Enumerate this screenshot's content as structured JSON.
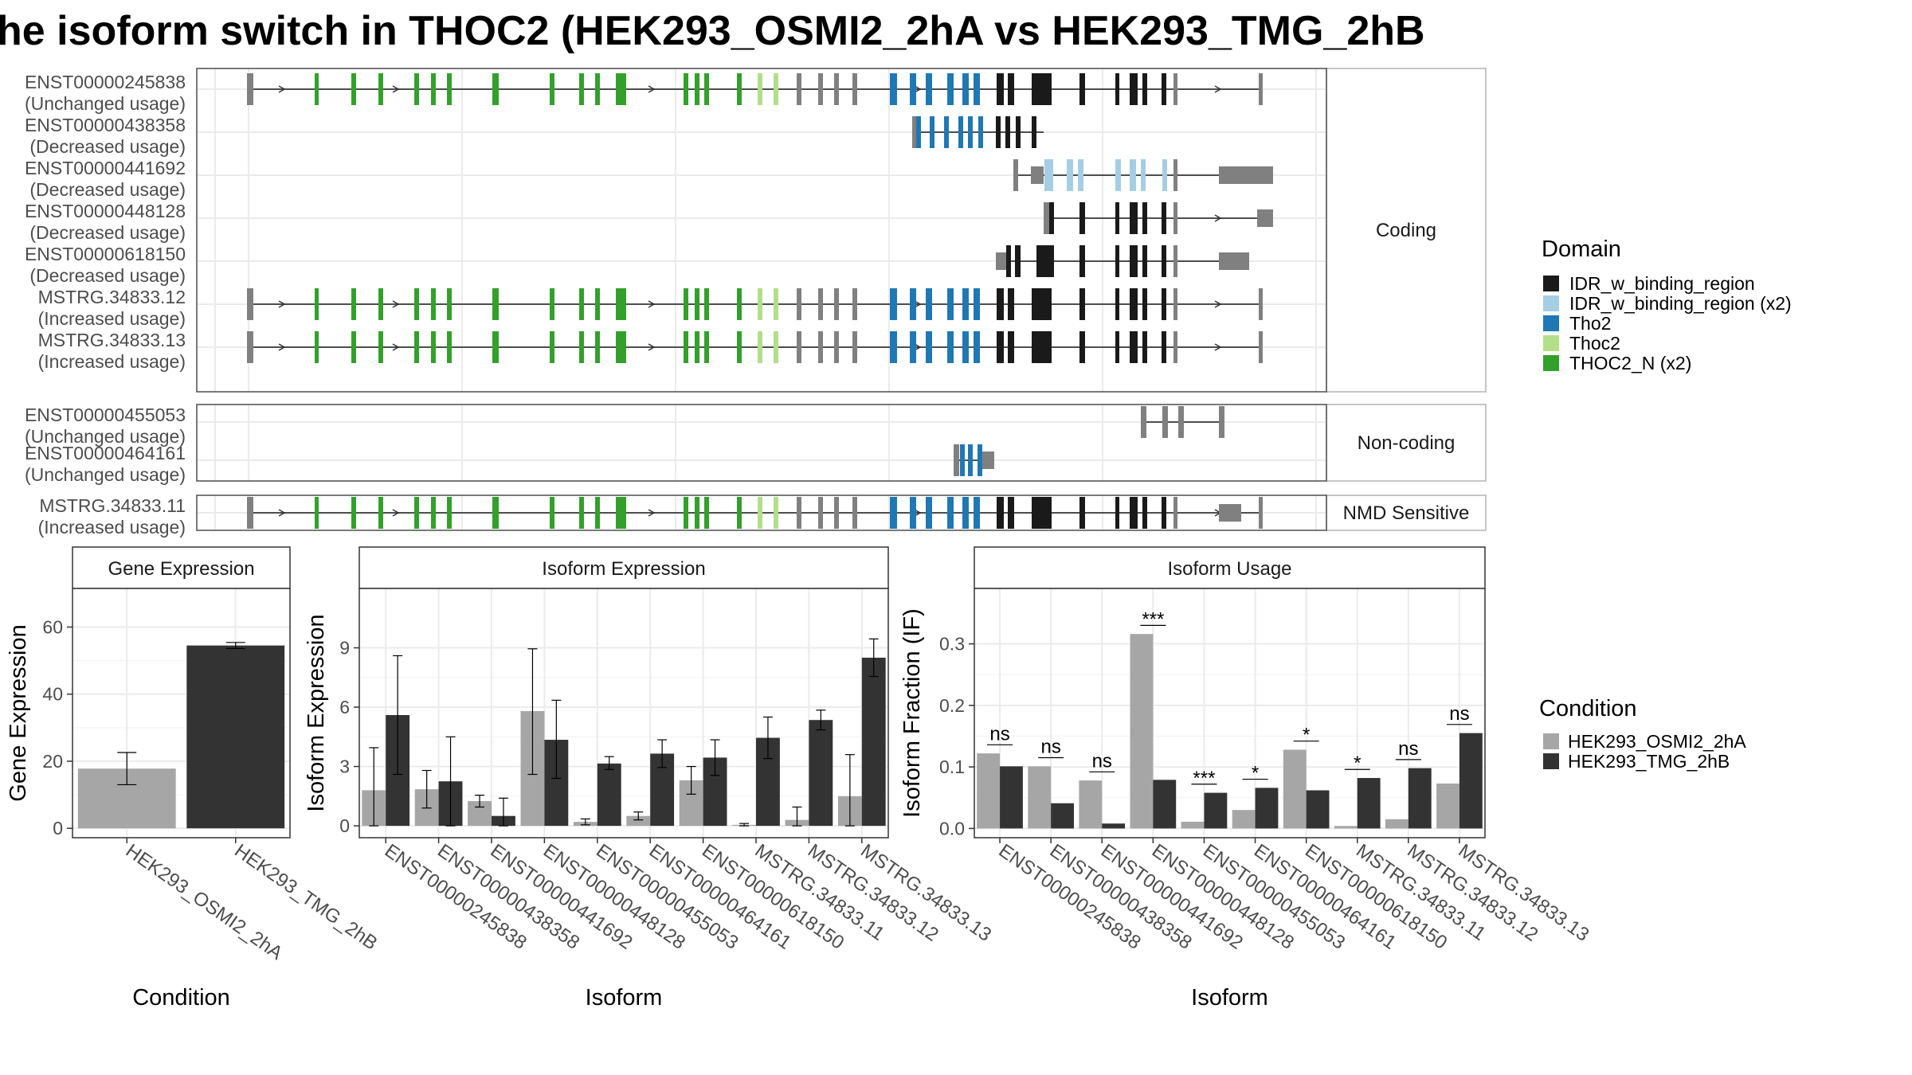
{
  "title": "he isoform switch in THOC2 (HEK293_OSMI2_2hA vs HEK293_TMG_2hB",
  "colors": {
    "IDR_w_binding_region": "#1a1a1a",
    "IDR_w_binding_region (x2)": "#a6cee3",
    "Tho2": "#1f78b4",
    "Thoc2": "#b2df8a",
    "THOC2_N (x2)": "#33a02c",
    "none": "#808080",
    "cond_a": "#a6a6a6",
    "cond_b": "#333333"
  },
  "structure": {
    "facets": [
      "Coding",
      "Non-coding",
      "NMD Sensitive"
    ],
    "isoforms": [
      {
        "id": "ENST00000245838",
        "usage": "(Unchanged usage)",
        "facet": "Coding",
        "template": "full"
      },
      {
        "id": "ENST00000438358",
        "usage": "(Decreased usage)",
        "facet": "Coding",
        "template": "t438"
      },
      {
        "id": "ENST00000441692",
        "usage": "(Decreased usage)",
        "facet": "Coding",
        "template": "t441"
      },
      {
        "id": "ENST00000448128",
        "usage": "(Decreased usage)",
        "facet": "Coding",
        "template": "t448"
      },
      {
        "id": "ENST00000618150",
        "usage": "(Decreased usage)",
        "facet": "Coding",
        "template": "t618"
      },
      {
        "id": "MSTRG.34833.12",
        "usage": "(Increased usage)",
        "facet": "Coding",
        "template": "full"
      },
      {
        "id": "MSTRG.34833.13",
        "usage": "(Increased usage)",
        "facet": "Coding",
        "template": "full"
      },
      {
        "id": "ENST00000455053",
        "usage": "(Unchanged usage)",
        "facet": "Non-coding",
        "template": "t455"
      },
      {
        "id": "ENST00000464161",
        "usage": "(Unchanged usage)",
        "facet": "Non-coding",
        "template": "t464"
      },
      {
        "id": "MSTRG.34833.11",
        "usage": "(Increased usage)",
        "facet": "NMD Sensitive",
        "template": "nmd"
      }
    ]
  },
  "legend_domain": {
    "title": "Domain",
    "items": [
      "IDR_w_binding_region",
      "IDR_w_binding_region (x2)",
      "Tho2",
      "Thoc2",
      "THOC2_N (x2)"
    ]
  },
  "legend_condition": {
    "title": "Condition",
    "items": [
      "HEK293_OSMI2_2hA",
      "HEK293_TMG_2hB"
    ]
  },
  "chart_data": [
    {
      "type": "bar",
      "title": "Gene Expression",
      "xlabel": "Condition",
      "ylabel": "Gene Expression",
      "categories": [
        "HEK293_OSMI2_2hA",
        "HEK293_TMG_2hB"
      ],
      "values": [
        17.8,
        54.5
      ],
      "err_low": [
        13.0,
        53.6
      ],
      "err_high": [
        22.6,
        55.4
      ],
      "ylim": [
        -2.8,
        71.5
      ],
      "yticks": [
        0,
        20,
        40,
        60
      ]
    },
    {
      "type": "bar",
      "title": "Isoform Expression",
      "xlabel": "Isoform",
      "ylabel": "Isoform Expression",
      "categories": [
        "ENST00000245838",
        "ENST00000438358",
        "ENST00000441692",
        "ENST00000448128",
        "ENST00000455053",
        "ENST00000464161",
        "ENST00000618150",
        "MSTRG.34833.11",
        "MSTRG.34833.12",
        "MSTRG.34833.13"
      ],
      "series": [
        {
          "name": "HEK293_OSMI2_2hA",
          "values": [
            1.8,
            1.85,
            1.25,
            5.8,
            0.2,
            0.5,
            2.3,
            0.05,
            0.3,
            1.5
          ],
          "err_low": [
            0.0,
            0.9,
            0.95,
            2.6,
            0.05,
            0.3,
            1.6,
            0.0,
            0.0,
            0.0
          ],
          "err_high": [
            3.95,
            2.8,
            1.55,
            8.95,
            0.35,
            0.7,
            3.0,
            0.12,
            0.95,
            3.6
          ]
        },
        {
          "name": "HEK293_TMG_2hB",
          "values": [
            5.6,
            2.25,
            0.5,
            4.35,
            3.15,
            3.65,
            3.45,
            4.45,
            5.35,
            8.5
          ],
          "err_low": [
            2.6,
            0.0,
            0.0,
            2.4,
            2.85,
            2.95,
            2.55,
            3.4,
            4.85,
            7.55
          ],
          "err_high": [
            8.6,
            4.5,
            1.4,
            6.35,
            3.5,
            4.35,
            4.35,
            5.5,
            5.85,
            9.45
          ]
        }
      ],
      "ylim": [
        -0.6,
        12.0
      ],
      "yticks": [
        0,
        3,
        6,
        9
      ]
    },
    {
      "type": "bar",
      "title": "Isoform Usage",
      "xlabel": "Isoform",
      "ylabel": "Isoform Fraction (IF)",
      "categories": [
        "ENST00000245838",
        "ENST00000438358",
        "ENST00000441692",
        "ENST00000448128",
        "ENST00000455053",
        "ENST00000464161",
        "ENST00000618150",
        "MSTRG.34833.11",
        "MSTRG.34833.12",
        "MSTRG.34833.13"
      ],
      "series": [
        {
          "name": "HEK293_OSMI2_2hA",
          "values": [
            0.122,
            0.101,
            0.078,
            0.316,
            0.011,
            0.03,
            0.128,
            0.004,
            0.015,
            0.073
          ]
        },
        {
          "name": "HEK293_TMG_2hB",
          "values": [
            0.101,
            0.041,
            0.008,
            0.079,
            0.058,
            0.066,
            0.062,
            0.082,
            0.098,
            0.155
          ]
        }
      ],
      "significance": [
        "ns",
        "ns",
        "ns",
        "***",
        "***",
        "*",
        "*",
        "*",
        "ns",
        "ns"
      ],
      "ylim": [
        -0.015,
        0.39
      ],
      "yticks": [
        0.0,
        0.1,
        0.2,
        0.3
      ]
    }
  ]
}
